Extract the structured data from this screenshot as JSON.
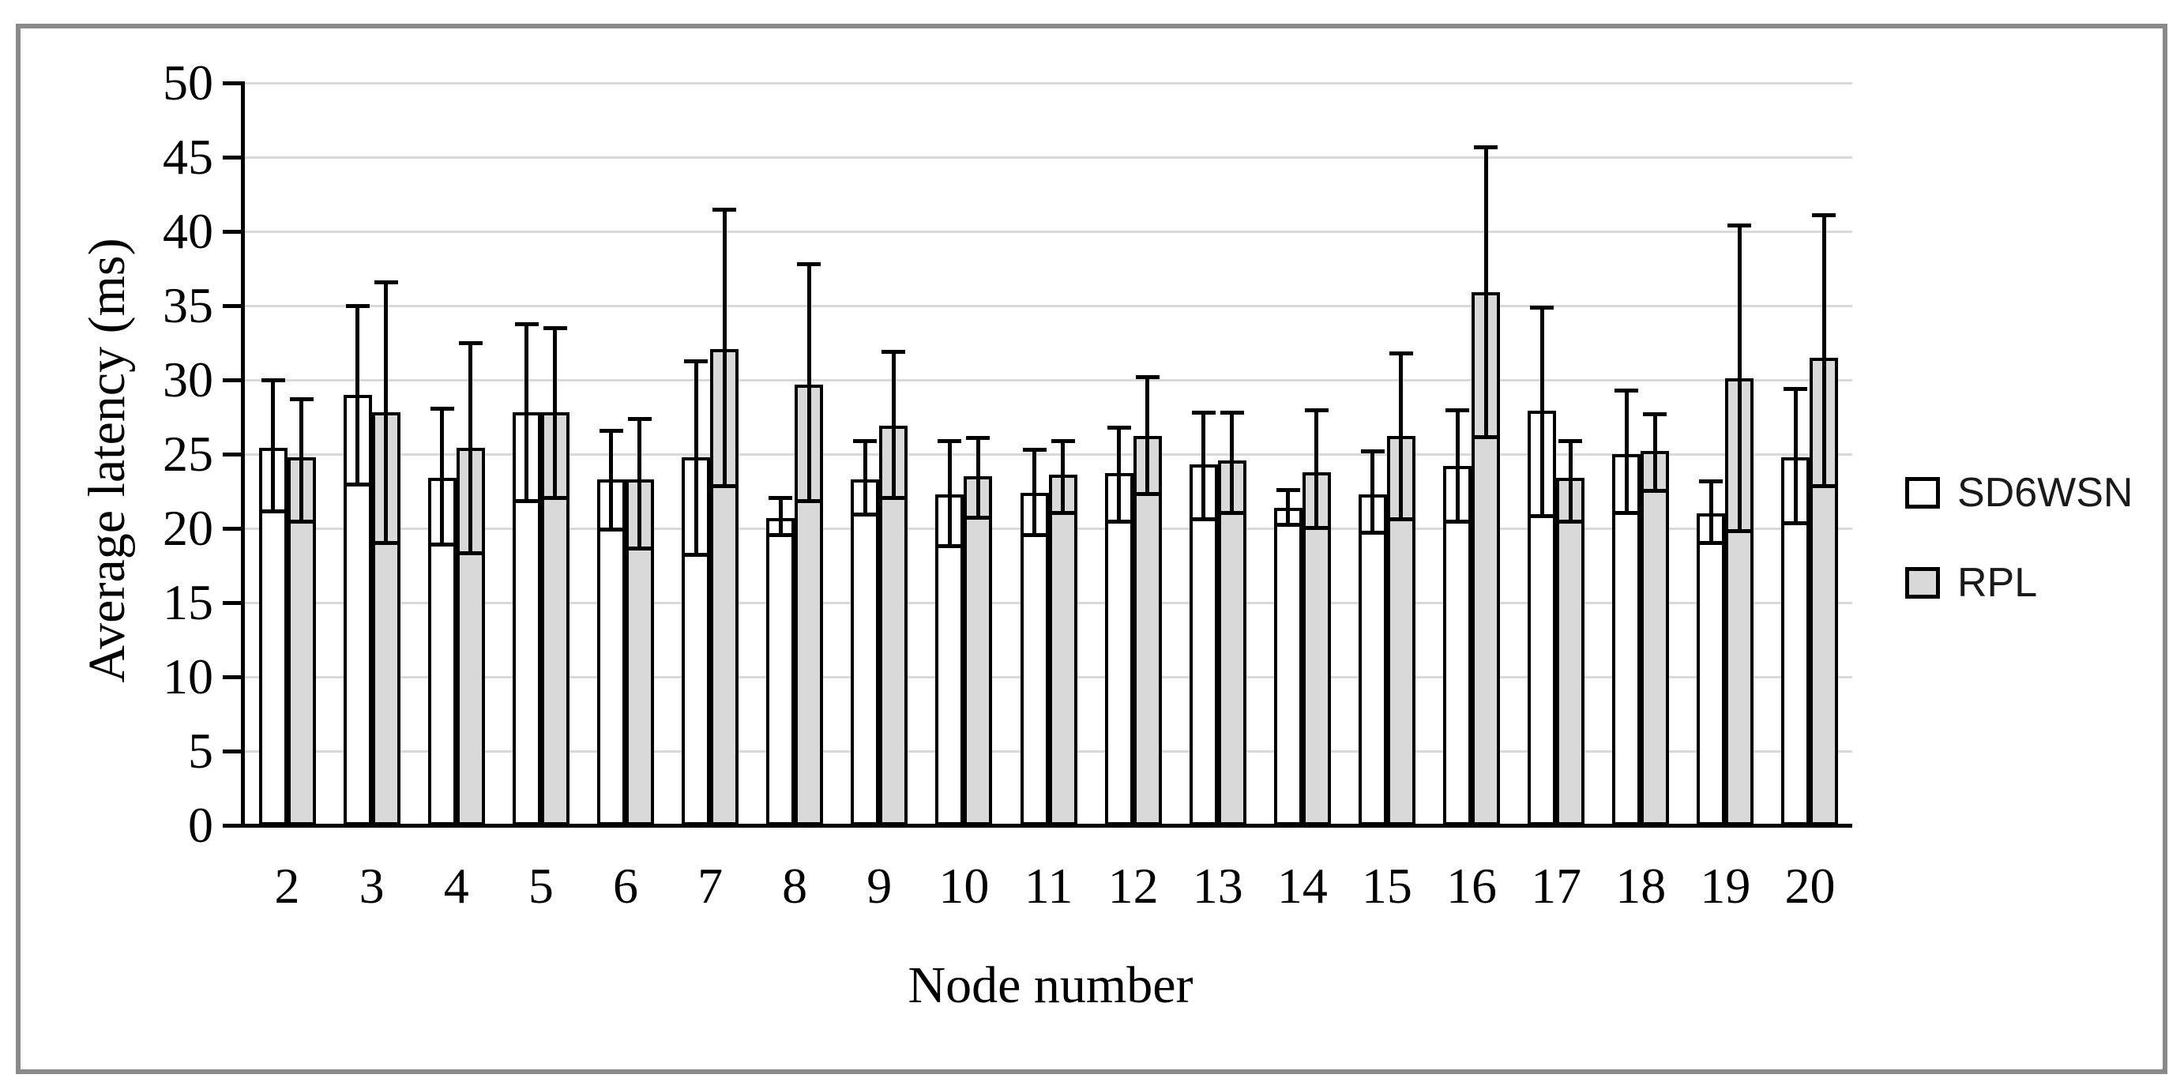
{
  "figure": {
    "background": "#ffffff",
    "border_color": "#8a8a8a"
  },
  "chart_data": {
    "type": "bar",
    "title": "",
    "xlabel": "Node number",
    "ylabel": "Average latency  (ms)",
    "ylim": [
      0,
      50
    ],
    "ytick_step": 5,
    "grid": true,
    "gridline_color": "#d9d9d9",
    "legend_position": "right",
    "error_bars": true,
    "categories": [
      "2",
      "3",
      "4",
      "5",
      "6",
      "7",
      "8",
      "9",
      "10",
      "11",
      "12",
      "13",
      "14",
      "15",
      "16",
      "17",
      "18",
      "19",
      "20"
    ],
    "series": [
      {
        "name": "SD6WSN",
        "fill": "#ffffff",
        "values": [
          25.4,
          29.0,
          23.4,
          27.8,
          23.3,
          24.8,
          20.7,
          23.3,
          22.3,
          22.4,
          23.7,
          24.3,
          21.4,
          22.3,
          24.2,
          27.9,
          25.0,
          21.0,
          24.8
        ],
        "whisker_low": [
          21.1,
          22.9,
          18.9,
          21.8,
          19.9,
          18.2,
          19.5,
          20.9,
          18.8,
          19.5,
          20.4,
          20.6,
          20.2,
          19.7,
          20.4,
          20.8,
          21.0,
          19.0,
          20.3
        ],
        "whisker_high": [
          30.0,
          35.0,
          28.1,
          33.8,
          26.6,
          31.3,
          22.1,
          25.9,
          25.9,
          25.3,
          26.8,
          27.8,
          22.6,
          25.2,
          28.0,
          34.9,
          29.3,
          23.2,
          29.4
        ]
      },
      {
        "name": "RPL",
        "fill": "#d9d9d9",
        "values": [
          24.8,
          27.8,
          25.4,
          27.8,
          23.3,
          32.1,
          29.7,
          26.9,
          23.5,
          23.6,
          26.2,
          24.6,
          23.8,
          26.2,
          35.9,
          23.4,
          25.2,
          30.1,
          31.5
        ],
        "whisker_low": [
          20.4,
          19.0,
          18.3,
          22.0,
          18.6,
          22.8,
          21.8,
          22.0,
          20.7,
          21.0,
          22.3,
          21.0,
          20.0,
          20.6,
          26.1,
          20.4,
          22.5,
          19.8,
          22.8
        ],
        "whisker_high": [
          28.7,
          36.6,
          32.5,
          33.5,
          27.4,
          41.5,
          37.8,
          31.9,
          26.1,
          25.9,
          30.2,
          27.8,
          28.0,
          31.8,
          45.7,
          25.9,
          27.7,
          40.4,
          41.1
        ]
      }
    ]
  }
}
